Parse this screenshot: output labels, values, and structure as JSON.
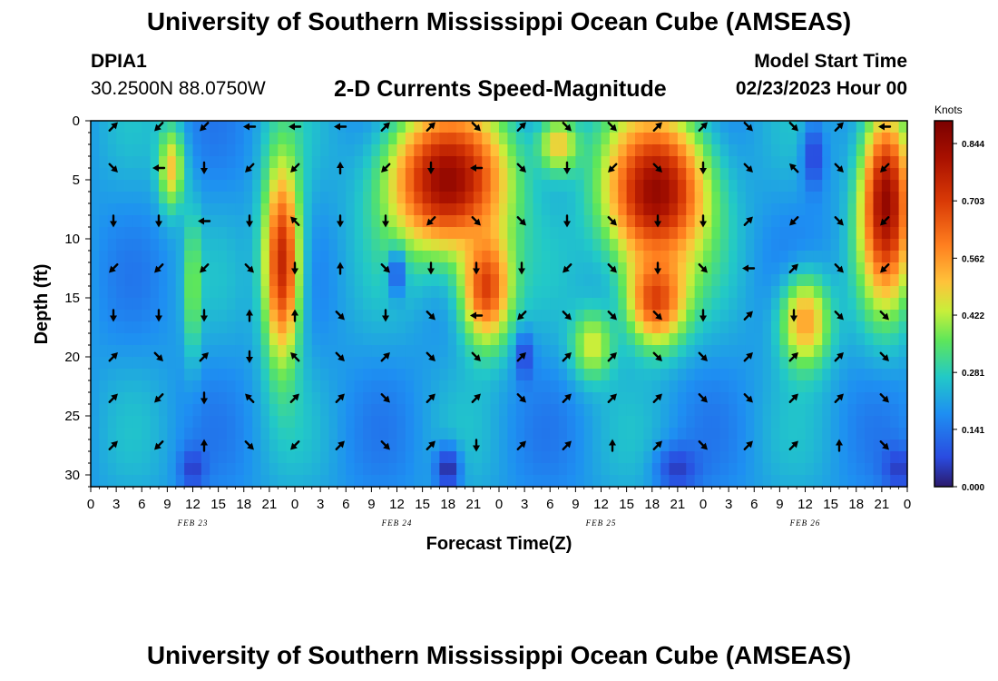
{
  "header": {
    "title": "University of Southern Mississippi Ocean Cube (AMSEAS)",
    "station_id": "DPIA1",
    "coordinates": "30.2500N  88.0750W",
    "model_start_label": "Model Start Time",
    "model_start_value": "02/23/2023 Hour 00"
  },
  "footer": {
    "title": "University of Southern Mississippi Ocean Cube (AMSEAS)"
  },
  "colors": {
    "low": "#2b1a6b",
    "high": "#7a0000",
    "arrow": "#000000"
  },
  "chart_data": {
    "type": "heatmap",
    "title": "2-D Currents Speed-Magnitude",
    "xlabel": "Forecast Time(Z)",
    "ylabel": "Depth (ft)",
    "colorbar_label": "Knots",
    "colorbar_ticks": [
      "0.844",
      "0.703",
      "0.562",
      "0.422",
      "0.281",
      "0.141",
      "0.000"
    ],
    "value_range": [
      0.0,
      0.9
    ],
    "x_range_hours": [
      0,
      96
    ],
    "x_tick_labels": [
      "0",
      "3",
      "6",
      "9",
      "12",
      "15",
      "18",
      "21",
      "0",
      "3",
      "6",
      "9",
      "12",
      "15",
      "18",
      "21",
      "0",
      "3",
      "6",
      "9",
      "12",
      "15",
      "18",
      "21",
      "0",
      "3",
      "6",
      "9",
      "12",
      "15",
      "18",
      "21",
      "0"
    ],
    "date_labels": [
      {
        "text": "FEB 23",
        "hour": 12
      },
      {
        "text": "FEB 24",
        "hour": 36
      },
      {
        "text": "FEB 25",
        "hour": 60
      },
      {
        "text": "FEB 26",
        "hour": 84
      }
    ],
    "y_range_ft": [
      0,
      31
    ],
    "y_tick_values": [
      0,
      5,
      10,
      15,
      20,
      25,
      30
    ],
    "vector_depths_ft": [
      0.5,
      4,
      8.5,
      12.5,
      16.5,
      20,
      23.5,
      27.5
    ],
    "speed_features": [
      {
        "hour": 22.5,
        "depth": 12,
        "sx": 2.2,
        "sy": 8.5,
        "value": 0.75
      },
      {
        "hour": 12,
        "depth": 14,
        "sx": 0.9,
        "sy": 6,
        "value": 0.4
      },
      {
        "hour": 9.5,
        "depth": 4,
        "sx": 1.5,
        "sy": 3.5,
        "value": 0.5
      },
      {
        "hour": 42,
        "depth": 5,
        "sx": 7,
        "sy": 6,
        "value": 0.85
      },
      {
        "hour": 46.5,
        "depth": 14,
        "sx": 3,
        "sy": 5,
        "value": 0.7
      },
      {
        "hour": 66.5,
        "depth": 6,
        "sx": 6,
        "sy": 6.5,
        "value": 0.85
      },
      {
        "hour": 66.5,
        "depth": 15,
        "sx": 3.5,
        "sy": 4,
        "value": 0.7
      },
      {
        "hour": 59,
        "depth": 19,
        "sx": 2.5,
        "sy": 3,
        "value": 0.45
      },
      {
        "hour": 84,
        "depth": 17,
        "sx": 3,
        "sy": 4,
        "value": 0.55
      },
      {
        "hour": 93.5,
        "depth": 7,
        "sx": 3,
        "sy": 8,
        "value": 0.85
      },
      {
        "hour": 55,
        "depth": 2,
        "sx": 2.5,
        "sy": 2.5,
        "value": 0.5
      }
    ],
    "low_features": [
      {
        "hour": 42,
        "depth": 29.5,
        "sx": 1.5,
        "sy": 2,
        "value": 0.02
      },
      {
        "hour": 69,
        "depth": 29.5,
        "sx": 2.5,
        "sy": 2,
        "value": 0.05
      },
      {
        "hour": 12,
        "depth": 29.5,
        "sx": 1.5,
        "sy": 1.8,
        "value": 0.05
      },
      {
        "hour": 85,
        "depth": 3,
        "sx": 1.3,
        "sy": 3,
        "value": 0.05
      },
      {
        "hour": 95,
        "depth": 29.5,
        "sx": 2,
        "sy": 2,
        "value": 0.05
      },
      {
        "hour": 51,
        "depth": 20,
        "sx": 1,
        "sy": 2,
        "value": 0.05
      },
      {
        "hour": 36,
        "depth": 13,
        "sx": 1,
        "sy": 2,
        "value": 0.08
      }
    ],
    "vector_field": [
      {
        "depth": 0.5,
        "directions": [
          "up-right",
          "down-left",
          "down-left",
          "left",
          "left",
          "left",
          "up-right",
          "up-right",
          "down-right",
          "up-right",
          "down-right",
          "down-right",
          "up-right",
          "up-right",
          "down-right",
          "down-right",
          "up-right",
          "left"
        ]
      },
      {
        "depth": 4,
        "directions": [
          "down-right",
          "left",
          "down",
          "down-left",
          "down-left",
          "up",
          "down-left",
          "down",
          "left",
          "down-right",
          "down",
          "down-left",
          "down-right",
          "down",
          "down-right",
          "up-left",
          "down-right",
          "down-left"
        ]
      },
      {
        "depth": 8.5,
        "directions": [
          "down",
          "down",
          "left",
          "down",
          "up-left",
          "down",
          "down",
          "down-left",
          "down-right",
          "down-right",
          "down",
          "down-right",
          "down",
          "down",
          "up-right",
          "down-left",
          "down-right",
          "down-left"
        ]
      },
      {
        "depth": 12.5,
        "directions": [
          "down-left",
          "down-left",
          "down-left",
          "down-right",
          "down",
          "up",
          "down-right",
          "down",
          "down",
          "down",
          "down-left",
          "down-right",
          "down",
          "down-right",
          "left",
          "up-right",
          "down-right",
          "down-left"
        ]
      },
      {
        "depth": 16.5,
        "directions": [
          "down",
          "down",
          "down",
          "up",
          "up",
          "down-right",
          "down",
          "down-right",
          "left",
          "down-left",
          "down-right",
          "down-right",
          "down-right",
          "down",
          "up-right",
          "down",
          "down-right",
          "down-right"
        ]
      },
      {
        "depth": 20,
        "directions": [
          "up-right",
          "down-right",
          "up-right",
          "down",
          "up-left",
          "down-right",
          "up-right",
          "down-right",
          "down-right",
          "up-right",
          "up-right",
          "up-right",
          "down-right",
          "down-right",
          "up-right",
          "up-right",
          "up-right",
          "down-right"
        ]
      },
      {
        "depth": 23.5,
        "directions": [
          "up-right",
          "down-left",
          "down",
          "up-left",
          "up-right",
          "up-right",
          "down-right",
          "up-right",
          "up-right",
          "down-right",
          "up-right",
          "up-right",
          "up-right",
          "down-right",
          "down-right",
          "up-right",
          "up-right",
          "down-right"
        ]
      },
      {
        "depth": 27.5,
        "directions": [
          "up-right",
          "down-left",
          "up",
          "down-right",
          "down-left",
          "up-right",
          "down-right",
          "up-right",
          "down",
          "up-right",
          "up-right",
          "up",
          "up-right",
          "down-right",
          "up-right",
          "up-right",
          "up",
          "down-right"
        ]
      }
    ]
  }
}
